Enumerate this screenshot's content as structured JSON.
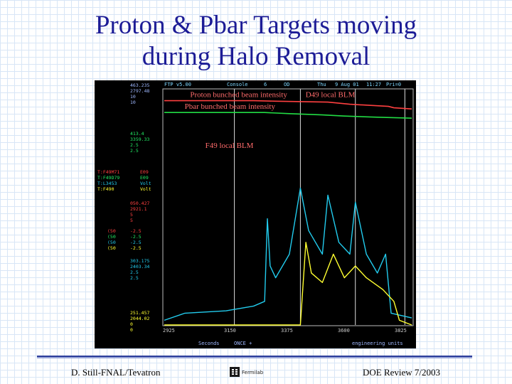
{
  "slide": {
    "title_line1": "Proton & Pbar Targets moving",
    "title_line2": "during Halo Removal",
    "footer_left": "D. Still-FNAL/Tevatron",
    "footer_right": "DOE Review 7/2003",
    "logo_text": "Fermilab"
  },
  "screen": {
    "header": [
      "FTP v5.00",
      "Console",
      "6",
      "OD",
      "Thu",
      "9 Aug 01",
      "11:27",
      "Pri=0"
    ],
    "left_numbers": {
      "g1": [
        "463.235",
        "2797.48",
        "10",
        "10"
      ],
      "g2": [
        "413.4",
        "3359.33",
        "2.5",
        "2.5"
      ],
      "g3": [
        "050.427",
        "2921.1",
        "5",
        "5"
      ],
      "g4": [
        "303.175",
        "2403.34",
        "2.5",
        "2.5"
      ],
      "g5": [
        "251.457",
        "2044.02",
        "0",
        "0"
      ]
    },
    "device_rows": [
      {
        "name": "T:F49M71",
        "unit": "E09"
      },
      {
        "name": "T:F49D79",
        "unit": "E09"
      },
      {
        "name": "T:L3453",
        "unit": "Volt"
      },
      {
        "name": "T:F490",
        "unit": "Volt"
      }
    ],
    "scale_rows": [
      {
        "a": "(50",
        "b": "-2.5"
      },
      {
        "a": "(50",
        "b": "-2.5"
      },
      {
        "a": "(50",
        "b": "-2.5"
      },
      {
        "a": "(50",
        "b": "-2.5"
      }
    ],
    "x_ticks": [
      "2925",
      "3150",
      "3375",
      "3600",
      "3825"
    ],
    "footer_items": [
      "Seconds",
      "ONCE +",
      "engineering units"
    ]
  },
  "chart_data": {
    "type": "line",
    "xlim": [
      2925,
      3825
    ],
    "xlabel": "Seconds",
    "ylabel": "",
    "x_ticks": [
      2925,
      3150,
      3375,
      3600,
      3825
    ],
    "grid": false,
    "series": [
      {
        "name": "Proton bunched beam intensity",
        "color": "#ff4040",
        "values": [
          [
            2925,
            0.95
          ],
          [
            3250,
            0.95
          ],
          [
            3330,
            0.948
          ],
          [
            3520,
            0.944
          ],
          [
            3600,
            0.935
          ],
          [
            3740,
            0.926
          ],
          [
            3760,
            0.92
          ],
          [
            3825,
            0.915
          ]
        ]
      },
      {
        "name": "Pbar bunched beam intensity",
        "color": "#22dd44",
        "values": [
          [
            2925,
            0.9
          ],
          [
            3290,
            0.9
          ],
          [
            3380,
            0.895
          ],
          [
            3500,
            0.89
          ],
          [
            3580,
            0.885
          ],
          [
            3700,
            0.88
          ],
          [
            3825,
            0.876
          ]
        ]
      },
      {
        "name": "F49 local BLM",
        "color": "#22ccee",
        "values": [
          [
            2925,
            0.02
          ],
          [
            3000,
            0.05
          ],
          [
            3150,
            0.06
          ],
          [
            3250,
            0.08
          ],
          [
            3290,
            0.1
          ],
          [
            3300,
            0.45
          ],
          [
            3310,
            0.25
          ],
          [
            3330,
            0.2
          ],
          [
            3380,
            0.3
          ],
          [
            3420,
            0.58
          ],
          [
            3450,
            0.4
          ],
          [
            3500,
            0.3
          ],
          [
            3520,
            0.55
          ],
          [
            3560,
            0.35
          ],
          [
            3600,
            0.3
          ],
          [
            3620,
            0.52
          ],
          [
            3660,
            0.3
          ],
          [
            3700,
            0.22
          ],
          [
            3730,
            0.3
          ],
          [
            3750,
            0.05
          ],
          [
            3825,
            0.03
          ]
        ]
      },
      {
        "name": "D49 local BLM",
        "color": "#ffff30",
        "values": [
          [
            2925,
            0.0
          ],
          [
            3420,
            0.0
          ],
          [
            3440,
            0.35
          ],
          [
            3460,
            0.22
          ],
          [
            3500,
            0.18
          ],
          [
            3540,
            0.3
          ],
          [
            3580,
            0.2
          ],
          [
            3620,
            0.25
          ],
          [
            3660,
            0.2
          ],
          [
            3720,
            0.15
          ],
          [
            3760,
            0.1
          ],
          [
            3780,
            0.02
          ],
          [
            3825,
            0.0
          ]
        ]
      }
    ],
    "annotations": [
      {
        "text": "Proton bunched beam intensity",
        "x": 3200,
        "y": 0.965
      },
      {
        "text": "D49 local BLM",
        "x": 3620,
        "y": 0.965
      },
      {
        "text": "Pbar bunched beam intensity",
        "x": 3180,
        "y": 0.915
      },
      {
        "text": "F49 local BLM",
        "x": 3255,
        "y": 0.75
      }
    ],
    "markers_x": [
      3180,
      3420,
      3620,
      3800
    ]
  }
}
